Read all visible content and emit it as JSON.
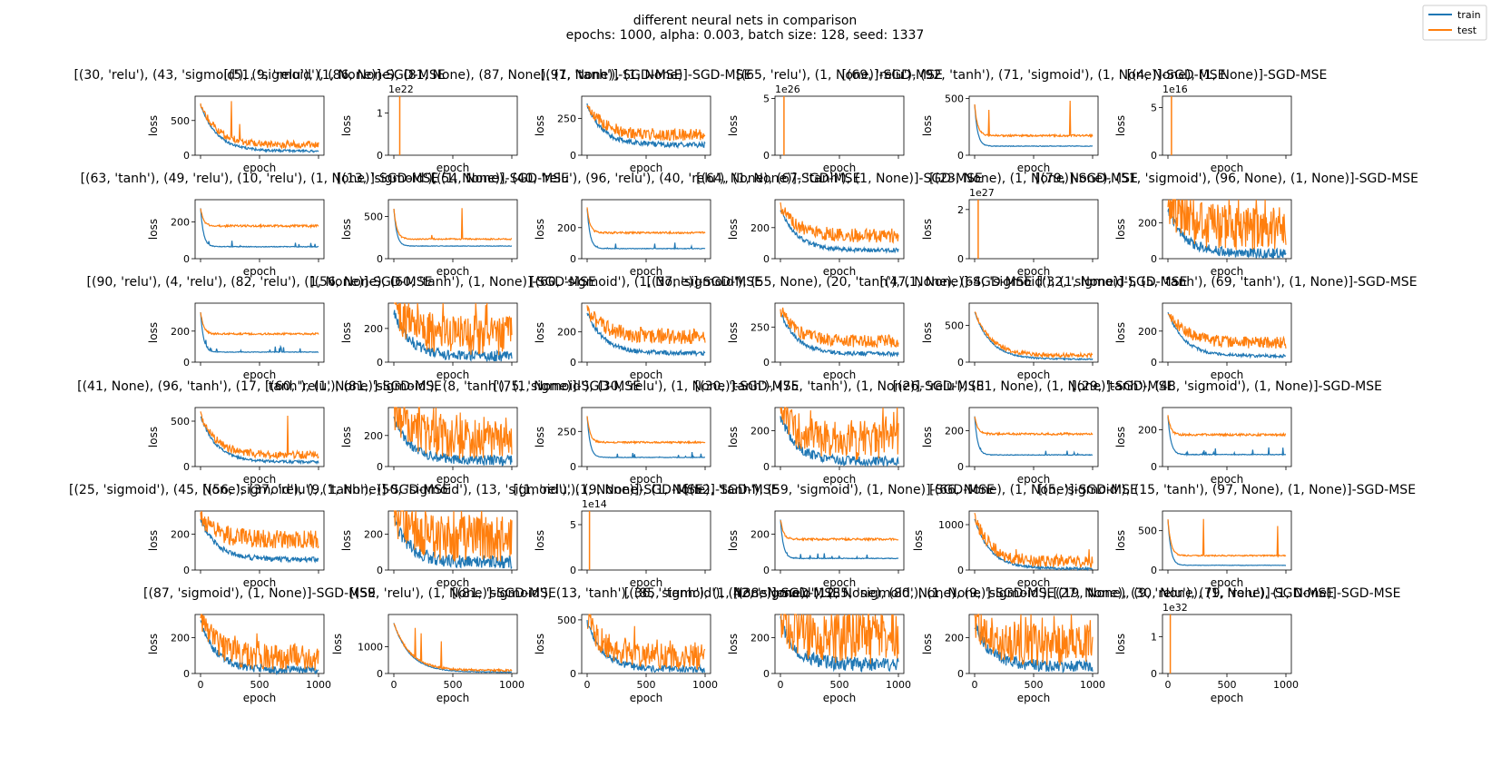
{
  "figure": {
    "title_line1": "different neural nets in comparison",
    "title_line2": "epochs: 1000, alpha: 0.003, batch size: 128, seed: 1337",
    "legend": [
      {
        "label": "train",
        "color": "#1f77b4"
      },
      {
        "label": "test",
        "color": "#ff7f0e"
      }
    ],
    "xlabel": "epoch",
    "ylabel": "loss"
  },
  "chart_data": {
    "type": "line",
    "x_range": [
      0,
      1000
    ],
    "x_ticks": [
      0,
      500,
      1000
    ],
    "series_names": [
      "train",
      "test"
    ],
    "subplots": [
      {
        "title": "[(30, 'relu'), (43, 'sigmoid'), (9, 'relu'), (1, None)]-SGD-MSE",
        "yticks": [
          "0",
          "500"
        ],
        "ymax": 850,
        "ymult": "",
        "pattern": "noisy-spike",
        "train_end": 60,
        "test_end": 130,
        "spikes": [
          [
            260,
            780
          ],
          [
            330,
            450
          ]
        ]
      },
      {
        "title": "[(51, 'sigmoid'), (86, None), (81, None), (87, None), (1, None)]-SGD-MSE",
        "yticks": [
          "0",
          "1"
        ],
        "ymax": 1.4,
        "ymult": "1e22",
        "pattern": "blowup",
        "blowup_x": 50
      },
      {
        "title": "[(97, 'tanh'), (1, None)]-SGD-MSE",
        "yticks": [
          "0",
          "250"
        ],
        "ymax": 400,
        "ymult": "",
        "pattern": "noisy",
        "train_end": 70,
        "test_end": 120
      },
      {
        "title": "[(65, 'relu'), (1, None)]-SGD-MSE",
        "yticks": [
          "0",
          "5"
        ],
        "ymax": 5.2,
        "ymult": "1e26",
        "pattern": "blowup",
        "blowup_x": 30
      },
      {
        "title": "[(69, 'relu'), (92, 'tanh'), (71, 'sigmoid'), (1, None)]-SGD-MSE",
        "yticks": [
          "0",
          "500"
        ],
        "ymax": 520,
        "ymult": "",
        "pattern": "flat-spike",
        "train_end": 80,
        "test_end": 170,
        "spikes": [
          [
            120,
            400
          ],
          [
            810,
            480
          ]
        ]
      },
      {
        "title": "[(4, None), (1, None)]-SGD-MSE",
        "yticks": [
          "0",
          "5"
        ],
        "ymax": 6.2,
        "ymult": "1e16",
        "pattern": "blowup",
        "blowup_x": 30
      },
      {
        "title": "[(63, 'tanh'), (49, 'relu'), (10, 'relu'), (1, None)]-SGD-MSE",
        "yticks": [
          "0",
          "200"
        ],
        "ymax": 320,
        "ymult": "",
        "pattern": "flat",
        "train_end": 65,
        "test_end": 175
      },
      {
        "title": "[(13, 'sigmoid'), (1, None)]-SGD-MSE",
        "yticks": [
          "0",
          "500"
        ],
        "ymax": 700,
        "ymult": "",
        "pattern": "flat-spike",
        "train_end": 150,
        "test_end": 230,
        "spikes": [
          [
            320,
            280
          ],
          [
            580,
            600
          ]
        ]
      },
      {
        "title": "[(54, None), (40, 'relu'), (96, 'relu'), (40, 'relu'), (1, None)]-SGD-MSE",
        "yticks": [
          "0",
          "200"
        ],
        "ymax": 380,
        "ymult": "",
        "pattern": "flat",
        "train_end": 65,
        "test_end": 165
      },
      {
        "title": "[(64, None), (67, 'tanh'), (1, None)]-SGD-MSE",
        "yticks": [
          "0",
          "200"
        ],
        "ymax": 380,
        "ymult": "",
        "pattern": "noisy",
        "train_end": 55,
        "test_end": 130
      },
      {
        "title": "[(23, None), (1, None)]-SGD-MSE",
        "yticks": [
          "0",
          "2"
        ],
        "ymax": 2.4,
        "ymult": "1e27",
        "pattern": "blowup",
        "blowup_x": 30
      },
      {
        "title": "[(79, None), (51, 'sigmoid'), (96, None), (1, None)]-SGD-MSE",
        "yticks": [
          "0",
          "200"
        ],
        "ymax": 330,
        "ymult": "",
        "pattern": "very-noisy",
        "train_end": 30,
        "test_end": 120
      },
      {
        "title": "[(90, 'relu'), (4, 'relu'), (82, 'relu'), (1, None)]-SGD-MSE",
        "yticks": [
          "0",
          "200"
        ],
        "ymax": 380,
        "ymult": "",
        "pattern": "flat",
        "train_end": 65,
        "test_end": 180
      },
      {
        "title": "[(56, None), (60, 'tanh'), (1, None)]-SGD-MSE",
        "yticks": [
          "0",
          "200"
        ],
        "ymax": 350,
        "ymult": "",
        "pattern": "very-noisy",
        "train_end": 35,
        "test_end": 110
      },
      {
        "title": "[(60, 'sigmoid'), (1, None)]-SGD-MSE",
        "yticks": [
          "0",
          "200"
        ],
        "ymax": 390,
        "ymult": "",
        "pattern": "noisy",
        "train_end": 60,
        "test_end": 150
      },
      {
        "title": "[(37, 'sigmoid'), (55, None), (20, 'tanh'), (1, None)]-SGD-MSE",
        "yticks": [
          "0",
          "250"
        ],
        "ymax": 420,
        "ymult": "",
        "pattern": "noisy",
        "train_end": 60,
        "test_end": 130
      },
      {
        "title": "[(47, None), (64, 'sigmoid'), (1, None)]-SGD-MSE",
        "yticks": [
          "0",
          "500"
        ],
        "ymax": 800,
        "ymult": "",
        "pattern": "noisy",
        "train_end": 40,
        "test_end": 80
      },
      {
        "title": "[(32, 'sigmoid'), (5, 'tanh'), (69, 'tanh'), (1, None)]-SGD-MSE",
        "yticks": [
          "0",
          "200"
        ],
        "ymax": 380,
        "ymult": "",
        "pattern": "noisy",
        "train_end": 40,
        "test_end": 110
      },
      {
        "title": "[(41, None), (96, 'tanh'), (17, 'tanh'), (1, None)]-SGD-MSE",
        "yticks": [
          "0",
          "500"
        ],
        "ymax": 650,
        "ymult": "",
        "pattern": "noisy-spike",
        "train_end": 50,
        "test_end": 110,
        "spikes": [
          [
            740,
            560
          ]
        ]
      },
      {
        "title": "[(60, 'relu'), (81, 'sigmoid'), (8, 'tanh'), (1, None)]-SGD-MSE",
        "yticks": [
          "0",
          "200"
        ],
        "ymax": 380,
        "ymult": "",
        "pattern": "very-noisy",
        "train_end": 40,
        "test_end": 120
      },
      {
        "title": "[(75, 'sigmoid'), (30, 'relu'), (1, None)]-SGD-MSE",
        "yticks": [
          "0",
          "250"
        ],
        "ymax": 420,
        "ymult": "",
        "pattern": "flat",
        "train_end": 65,
        "test_end": 170
      },
      {
        "title": "[(30, 'tanh'), (75, 'tanh'), (1, None)]-SGD-MSE",
        "yticks": [
          "0",
          "200"
        ],
        "ymax": 330,
        "ymult": "",
        "pattern": "very-noisy",
        "train_end": 30,
        "test_end": 100
      },
      {
        "title": "[(26, 'relu'), (81, None), (1, None)]-SGD-MSE",
        "yticks": [
          "0",
          "200"
        ],
        "ymax": 330,
        "ymult": "",
        "pattern": "flat",
        "train_end": 65,
        "test_end": 180
      },
      {
        "title": "[(29, 'tanh'), (48, 'sigmoid'), (1, None)]-SGD-MSE",
        "yticks": [
          "0",
          "200"
        ],
        "ymax": 320,
        "ymult": "",
        "pattern": "flat",
        "train_end": 65,
        "test_end": 170
      },
      {
        "title": "[(25, 'sigmoid'), (45, None), (37, 'relu'), (1, None)]-SGD-MSE",
        "yticks": [
          "0",
          "200"
        ],
        "ymax": 330,
        "ymult": "",
        "pattern": "noisy",
        "train_end": 60,
        "test_end": 150
      },
      {
        "title": "[(56, 'sigmoid'), (9, 'tanh'), (50, 'sigmoid'), (13, 'sigmoid'), (1, None)]-SGD-MSE",
        "yticks": [
          "0",
          "200"
        ],
        "ymax": 330,
        "ymult": "",
        "pattern": "very-noisy",
        "train_end": 45,
        "test_end": 120
      },
      {
        "title": "[(1, 'relu'), (9, None), (1, None)]-SGD-MSE",
        "yticks": [
          "0",
          "5"
        ],
        "ymax": 6.5,
        "ymult": "1e14",
        "pattern": "blowup",
        "blowup_x": 20
      },
      {
        "title": "[(52, 'tanh'), (59, 'sigmoid'), (1, None)]-SGD-MSE",
        "yticks": [
          "0",
          "200"
        ],
        "ymax": 330,
        "ymult": "",
        "pattern": "flat",
        "train_end": 65,
        "test_end": 170
      },
      {
        "title": "[(66, None), (1, None)]-SGD-MSE",
        "yticks": [
          "0",
          "1000"
        ],
        "ymax": 1300,
        "ymult": "",
        "pattern": "very-noisy",
        "train_end": 30,
        "test_end": 120
      },
      {
        "title": "[(5, 'sigmoid'), (15, 'tanh'), (97, None), (1, None)]-SGD-MSE",
        "yticks": [
          "0",
          "500"
        ],
        "ymax": 750,
        "ymult": "",
        "pattern": "flat-spike",
        "train_end": 60,
        "test_end": 180,
        "spikes": [
          [
            300,
            650
          ],
          [
            930,
            560
          ]
        ]
      },
      {
        "title": "[(87, 'sigmoid'), (1, None)]-SGD-MSE",
        "yticks": [
          "0",
          "200"
        ],
        "ymax": 330,
        "ymult": "",
        "pattern": "very-noisy",
        "train_end": 20,
        "test_end": 60
      },
      {
        "title": "[(59, 'relu'), (1, None)]-SGD-MSE",
        "yticks": [
          "0",
          "1000"
        ],
        "ymax": 2200,
        "ymult": "",
        "pattern": "noisy-spike",
        "train_end": 50,
        "test_end": 100,
        "spikes": [
          [
            180,
            1700
          ],
          [
            230,
            1500
          ],
          [
            400,
            1200
          ]
        ]
      },
      {
        "title": "[(81, 'sigmoid'), (13, 'tanh'), (85, 'tanh'), (1, None)]-SGD-MSE",
        "yticks": [
          "0",
          "500"
        ],
        "ymax": 550,
        "ymult": "",
        "pattern": "very-noisy",
        "train_end": 40,
        "test_end": 110
      },
      {
        "title": "[(36, 'sigmoid'), (42, 'sigmoid'), (85, 'sigmoid'), (1, None)]-SGD-MSE",
        "yticks": [
          "0",
          "200"
        ],
        "ymax": 330,
        "ymult": "",
        "pattern": "very-noisy",
        "train_end": 50,
        "test_end": 140
      },
      {
        "title": "[(38, None), (12, None), (80, None), (9, 'sigmoid'), (27, None), (30, None), (1, None)]-SGD-MSE",
        "yticks": [
          "0",
          "200"
        ],
        "ymax": 330,
        "ymult": "",
        "pattern": "very-noisy",
        "train_end": 40,
        "test_end": 110
      },
      {
        "title": "[(19, None), (9, 'relu'), (79, 'relu'), (1, None)]-SGD-MSE",
        "yticks": [
          "0",
          "1"
        ],
        "ymax": 1.6,
        "ymult": "1e32",
        "pattern": "blowup",
        "blowup_x": 20
      }
    ]
  }
}
